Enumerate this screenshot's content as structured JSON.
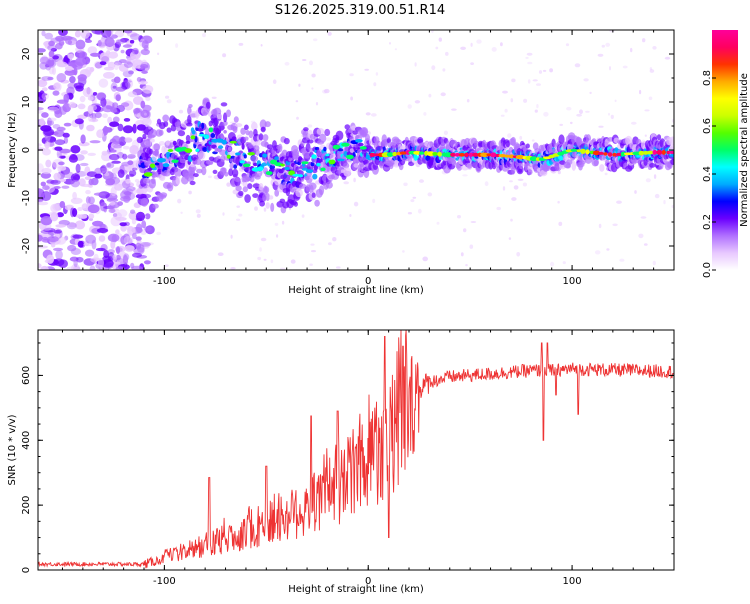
{
  "title": "S126.2025.319.00.51.R14",
  "chart_data": [
    {
      "type": "heatmap",
      "name": "spectrogram",
      "xlabel": "Height of straight line (km)",
      "ylabel": "Frequency (Hz)",
      "xlim": [
        -162,
        150
      ],
      "ylim": [
        -25,
        25
      ],
      "xticks": [
        -100,
        0,
        100
      ],
      "xtick_labels": [
        "-100",
        "0",
        "100"
      ],
      "yticks": [
        20,
        10,
        0,
        -10,
        -20
      ],
      "ytick_labels": [
        "20",
        "10",
        "0",
        "-10",
        "-20"
      ],
      "colorbar": {
        "label": "Normalized spectral amplitude",
        "range": [
          0,
          1
        ],
        "ticks": [
          0.0,
          0.2,
          0.4,
          0.6,
          0.8
        ],
        "tick_labels": [
          "0.0",
          "0.2",
          "0.4",
          "0.6",
          "0.8"
        ],
        "colors": [
          "#ffffff",
          "#e8c8ff",
          "#b070ff",
          "#6a00ff",
          "#0000ff",
          "#00aaff",
          "#00ffff",
          "#00ff66",
          "#55ff00",
          "#ccff00",
          "#ffff00",
          "#ffaa00",
          "#ff3300",
          "#ff0060",
          "#ff0099"
        ]
      },
      "ridge": [
        {
          "x": -110,
          "y": -4
        },
        {
          "x": -100,
          "y": -2
        },
        {
          "x": -90,
          "y": 0
        },
        {
          "x": -80,
          "y": 3
        },
        {
          "x": -70,
          "y": 1
        },
        {
          "x": -60,
          "y": -2
        },
        {
          "x": -50,
          "y": -3
        },
        {
          "x": -40,
          "y": -5
        },
        {
          "x": -30,
          "y": -4
        },
        {
          "x": -20,
          "y": -2
        },
        {
          "x": -10,
          "y": 0
        },
        {
          "x": -5,
          "y": 0
        },
        {
          "x": 0,
          "y": -1
        },
        {
          "x": 10,
          "y": -1
        },
        {
          "x": 20,
          "y": -0.5
        },
        {
          "x": 40,
          "y": -1
        },
        {
          "x": 60,
          "y": -1
        },
        {
          "x": 75,
          "y": -1.5
        },
        {
          "x": 85,
          "y": -2
        },
        {
          "x": 100,
          "y": 0
        },
        {
          "x": 120,
          "y": -1
        },
        {
          "x": 140,
          "y": -0.5
        },
        {
          "x": 150,
          "y": -0.5
        }
      ]
    },
    {
      "type": "line",
      "name": "snr",
      "xlabel": "Height of straight line (km)",
      "ylabel": "SNR (10 * v/v)",
      "xlim": [
        -162,
        150
      ],
      "ylim": [
        0,
        740
      ],
      "xticks": [
        -100,
        0,
        100
      ],
      "xtick_labels": [
        "-100",
        "0",
        "100"
      ],
      "yticks": [
        0,
        200,
        400,
        600
      ],
      "ytick_labels": [
        "0",
        "200",
        "400",
        "600"
      ],
      "color": "#ee3333",
      "baseline": [
        {
          "x": -162,
          "y": 18
        },
        {
          "x": -110,
          "y": 18
        },
        {
          "x": -100,
          "y": 35
        },
        {
          "x": -90,
          "y": 50
        },
        {
          "x": -80,
          "y": 70
        },
        {
          "x": -70,
          "y": 90
        },
        {
          "x": -60,
          "y": 110
        },
        {
          "x": -50,
          "y": 130
        },
        {
          "x": -40,
          "y": 155
        },
        {
          "x": -30,
          "y": 180
        },
        {
          "x": -20,
          "y": 220
        },
        {
          "x": -10,
          "y": 270
        },
        {
          "x": 0,
          "y": 330
        },
        {
          "x": 10,
          "y": 400
        },
        {
          "x": 20,
          "y": 500
        },
        {
          "x": 25,
          "y": 560
        },
        {
          "x": 30,
          "y": 580
        },
        {
          "x": 40,
          "y": 595
        },
        {
          "x": 60,
          "y": 605
        },
        {
          "x": 80,
          "y": 615
        },
        {
          "x": 90,
          "y": 615
        },
        {
          "x": 100,
          "y": 620
        },
        {
          "x": 150,
          "y": 612
        }
      ]
    }
  ]
}
